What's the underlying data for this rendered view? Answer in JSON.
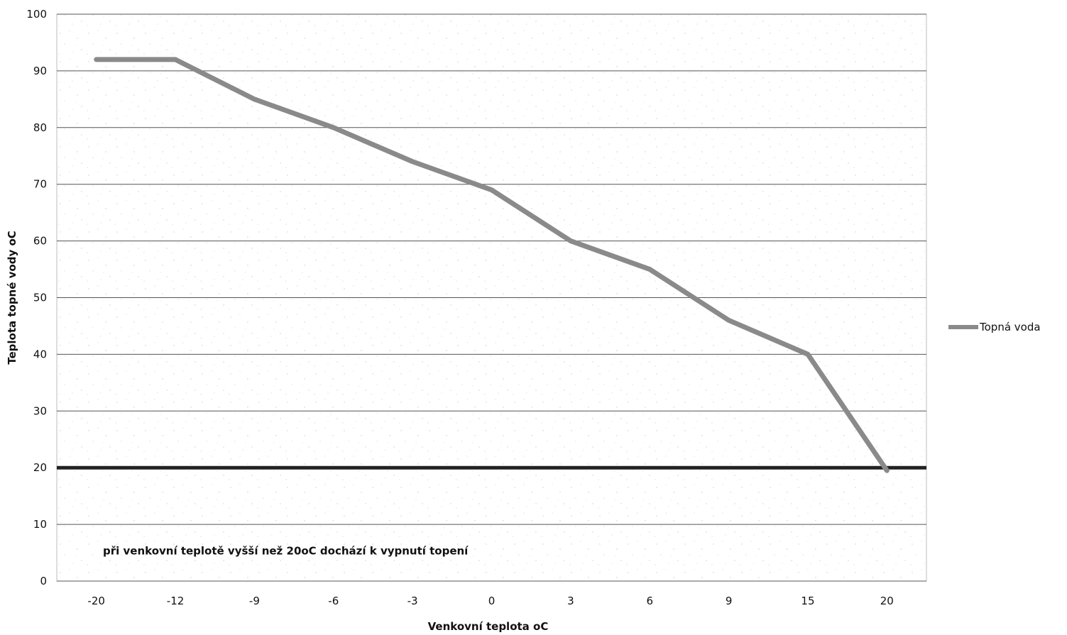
{
  "chart_data": {
    "type": "line",
    "title": "",
    "xlabel": "Venkovní teplota  oC",
    "ylabel": "Teplota  topné vody   oC",
    "categories": [
      "-20",
      "-12",
      "-9",
      "-6",
      "-3",
      "0",
      "3",
      "6",
      "9",
      "15",
      "20"
    ],
    "ylim": [
      0,
      100
    ],
    "yticks": [
      0,
      10,
      20,
      30,
      40,
      50,
      60,
      70,
      80,
      90,
      100
    ],
    "series": [
      {
        "name": "Topná voda",
        "values": [
          92,
          92,
          85,
          80,
          74,
          69,
          60,
          55,
          46,
          40,
          19.5
        ],
        "color": "#8a8a8a"
      }
    ],
    "reference_line": {
      "y": 20,
      "color": "#222222"
    },
    "annotation": "při venkovní teplotě vyšší než 20oC dochází k vypnutí topení",
    "grid": true,
    "legend_position": "right"
  }
}
